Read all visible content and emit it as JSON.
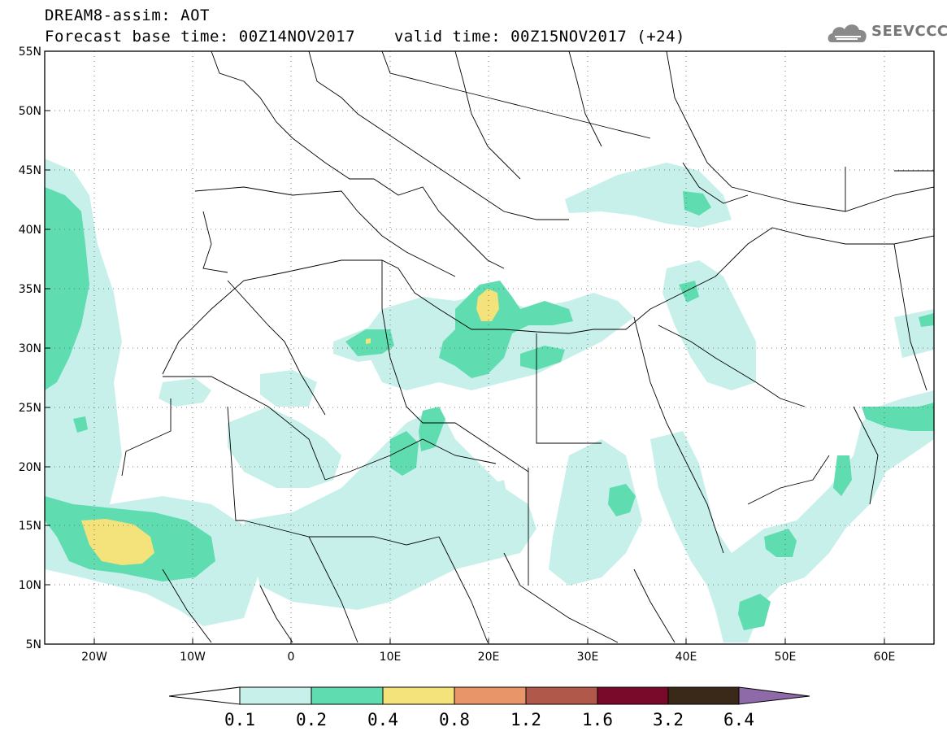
{
  "header": {
    "line1": "DREAM8-assim: AOT",
    "line2_base": "Forecast base time: 00Z14NOV2017",
    "line2_valid": "valid time: 00Z15NOV2017 (+24)"
  },
  "logo": {
    "text": "SEEVCCC",
    "icon": "cloud-icon"
  },
  "map": {
    "lon_range": [
      -25,
      65
    ],
    "lat_range": [
      5,
      55
    ],
    "lat_ticks": [
      {
        "value": 55,
        "label": "55N"
      },
      {
        "value": 50,
        "label": "50N"
      },
      {
        "value": 45,
        "label": "45N"
      },
      {
        "value": 40,
        "label": "40N"
      },
      {
        "value": 35,
        "label": "35N"
      },
      {
        "value": 30,
        "label": "30N"
      },
      {
        "value": 25,
        "label": "25N"
      },
      {
        "value": 20,
        "label": "20N"
      },
      {
        "value": 15,
        "label": "15N"
      },
      {
        "value": 10,
        "label": "10N"
      },
      {
        "value": 5,
        "label": "5N"
      }
    ],
    "lon_ticks": [
      {
        "value": -20,
        "label": "20W"
      },
      {
        "value": -10,
        "label": "10W"
      },
      {
        "value": 0,
        "label": "0"
      },
      {
        "value": 10,
        "label": "10E"
      },
      {
        "value": 20,
        "label": "20E"
      },
      {
        "value": 30,
        "label": "30E"
      },
      {
        "value": 40,
        "label": "40E"
      },
      {
        "value": 50,
        "label": "50E"
      },
      {
        "value": 60,
        "label": "60E"
      }
    ],
    "grid": "dotted",
    "colors": {
      "aot_0_1": "#c7f0ea",
      "aot_0_2": "#5fdcb0",
      "aot_0_4": "#f4e27a",
      "border": "#000000"
    }
  },
  "colorbar": {
    "labels": [
      "0.1",
      "0.2",
      "0.4",
      "0.8",
      "1.2",
      "1.6",
      "3.2",
      "6.4"
    ],
    "colors": [
      "#ffffff",
      "#c7f0ea",
      "#5fdcb0",
      "#f4e27a",
      "#e8956a",
      "#b0584a",
      "#7a0a2a",
      "#3a2818",
      "#8e6aa8"
    ]
  }
}
